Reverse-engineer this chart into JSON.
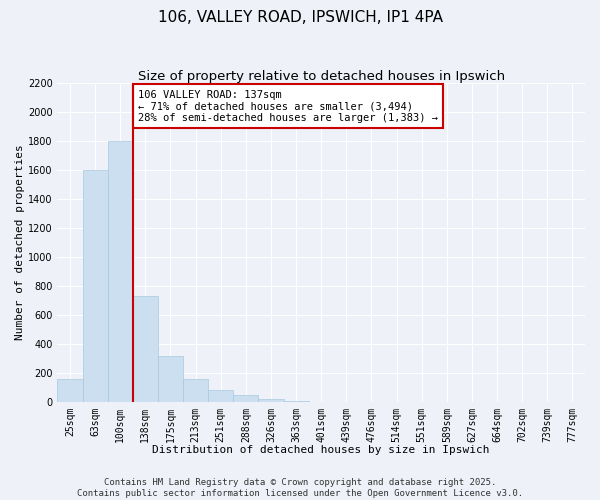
{
  "title": "106, VALLEY ROAD, IPSWICH, IP1 4PA",
  "subtitle": "Size of property relative to detached houses in Ipswich",
  "xlabel": "Distribution of detached houses by size in Ipswich",
  "ylabel": "Number of detached properties",
  "bin_labels": [
    "25sqm",
    "63sqm",
    "100sqm",
    "138sqm",
    "175sqm",
    "213sqm",
    "251sqm",
    "288sqm",
    "326sqm",
    "363sqm",
    "401sqm",
    "439sqm",
    "476sqm",
    "514sqm",
    "551sqm",
    "589sqm",
    "627sqm",
    "664sqm",
    "702sqm",
    "739sqm",
    "777sqm"
  ],
  "bar_values": [
    160,
    1600,
    1800,
    730,
    320,
    160,
    85,
    50,
    20,
    10,
    0,
    0,
    0,
    0,
    0,
    0,
    0,
    0,
    0,
    0,
    0
  ],
  "bar_color": "#ccdff0",
  "bar_edge_color": "#a8c8e0",
  "vline_color": "#cc0000",
  "annotation_text": "106 VALLEY ROAD: 137sqm\n← 71% of detached houses are smaller (3,494)\n28% of semi-detached houses are larger (1,383) →",
  "annotation_box_color": "#ffffff",
  "annotation_box_edge": "#cc0000",
  "ylim": [
    0,
    2200
  ],
  "yticks": [
    0,
    200,
    400,
    600,
    800,
    1000,
    1200,
    1400,
    1600,
    1800,
    2000,
    2200
  ],
  "footer_line1": "Contains HM Land Registry data © Crown copyright and database right 2025.",
  "footer_line2": "Contains public sector information licensed under the Open Government Licence v3.0.",
  "background_color": "#eef2f8",
  "grid_color": "#ffffff",
  "title_fontsize": 11,
  "subtitle_fontsize": 9.5,
  "axis_label_fontsize": 8,
  "tick_fontsize": 7,
  "annot_fontsize": 7.5,
  "footer_fontsize": 6.5
}
